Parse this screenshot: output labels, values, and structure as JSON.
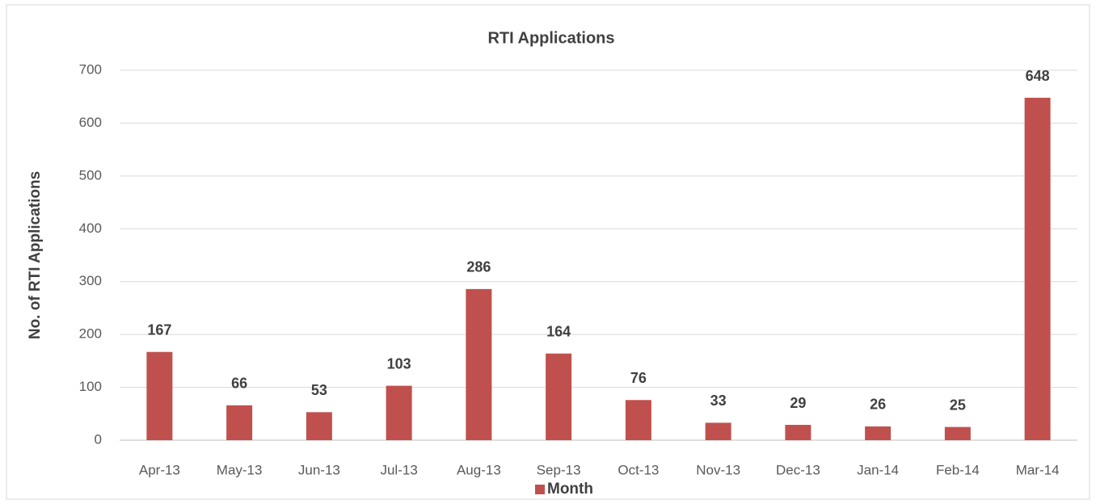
{
  "chart_data": {
    "type": "bar",
    "title": "RTI Applications",
    "y_label": "No. of RTI Applications",
    "categories": [
      "Apr-13",
      "May-13",
      "Jun-13",
      "Jul-13",
      "Aug-13",
      "Sep-13",
      "Oct-13",
      "Nov-13",
      "Dec-13",
      "Jan-14",
      "Feb-14",
      "Mar-14"
    ],
    "series": [
      {
        "name": "Month",
        "color": "#c0504d",
        "values": [
          167,
          66,
          53,
          103,
          286,
          164,
          76,
          33,
          29,
          26,
          25,
          648
        ]
      }
    ],
    "ylim": [
      0,
      700
    ],
    "yticks": [
      0,
      100,
      200,
      300,
      400,
      500,
      600,
      700
    ],
    "grid": true,
    "legend": "bottom"
  }
}
